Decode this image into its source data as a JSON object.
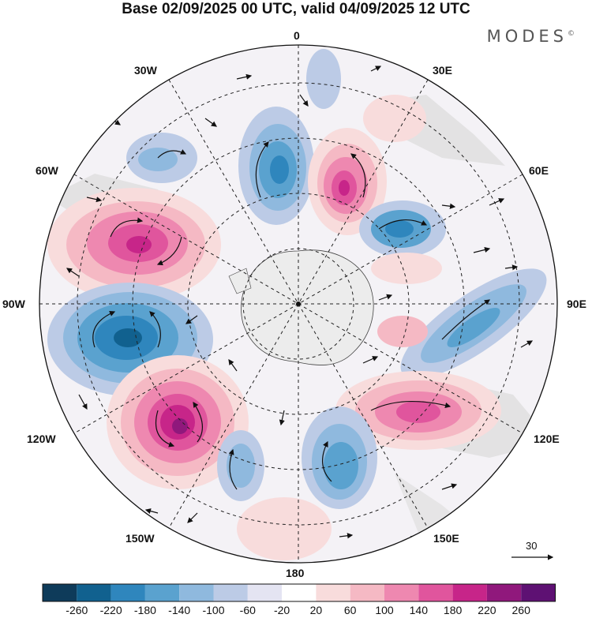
{
  "title": "Base 02/09/2025 00 UTC, valid 04/09/2025 12 UTC",
  "brand": "MODES",
  "brand_mark": "©",
  "longitude_labels": {
    "top": "0",
    "bottom": "180",
    "left": "90W",
    "right": "90E",
    "w30": "30W",
    "e30": "30E",
    "w60": "60W",
    "e60": "60E",
    "w120": "120W",
    "e120": "120E",
    "w150": "150W",
    "e150": "150E"
  },
  "reference_vector": {
    "label": "30"
  },
  "colorbar": {
    "ticks": [
      "-260",
      "-220",
      "-180",
      "-140",
      "-100",
      "-60",
      "-20",
      "20",
      "60",
      "100",
      "140",
      "180",
      "220",
      "260"
    ],
    "colors": [
      "#0e3b5a",
      "#11618f",
      "#2f86bd",
      "#5aa2cf",
      "#8fb9de",
      "#bccbe6",
      "#e4e4f2",
      "#ffffff",
      "#f8dcdc",
      "#f5b9c4",
      "#ee88b0",
      "#e0559d",
      "#c72589",
      "#90187c",
      "#5e1173"
    ]
  }
}
